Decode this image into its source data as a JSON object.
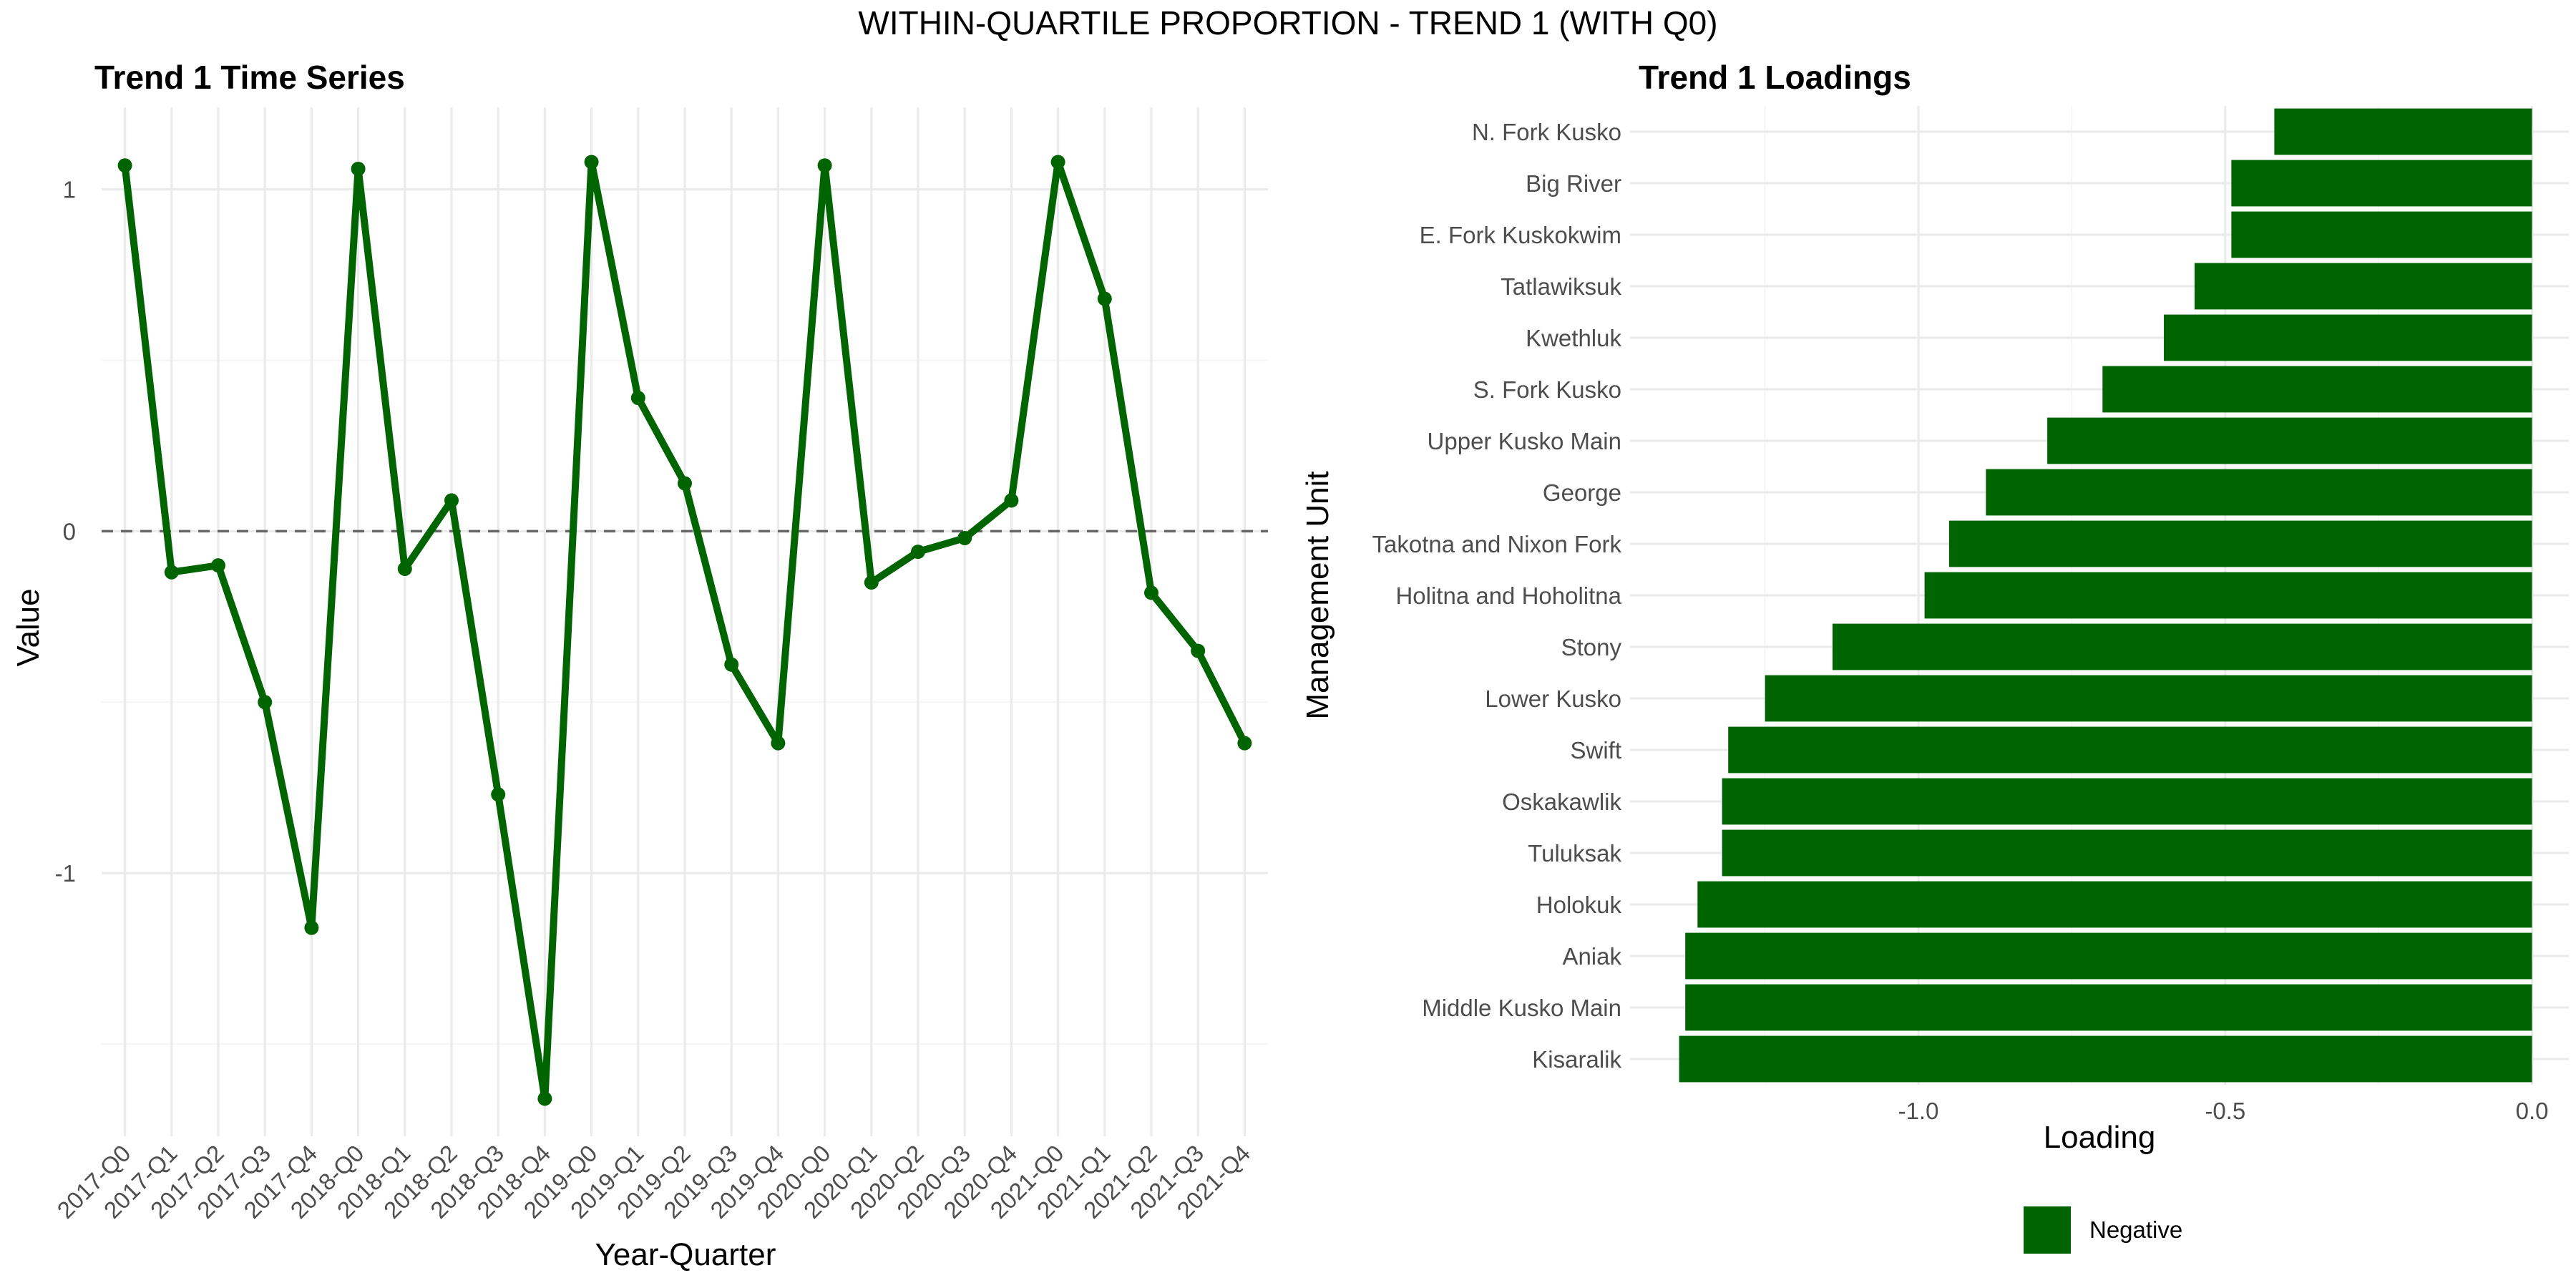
{
  "figure": {
    "title": "WITHIN-QUARTILE PROPORTION - TREND 1 (WITH Q0)"
  },
  "colors": {
    "series": "#006400",
    "zero_line": "#666666",
    "grid_major": "#ebebeb",
    "grid_minor": "#f4f4f4",
    "tick_text": "#4d4d4d"
  },
  "chart_data": [
    {
      "type": "line",
      "title": "Trend 1 Time Series",
      "xlabel": "Year-Quarter",
      "ylabel": "Value",
      "ylim": [
        -1.77,
        1.24
      ],
      "yticks": [
        1,
        0,
        -1
      ],
      "yticks_labels": [
        "1",
        "0",
        "-1"
      ],
      "reference_line": {
        "y": 0,
        "style": "dashed"
      },
      "grid": true,
      "x": [
        "2017-Q0",
        "2017-Q1",
        "2017-Q2",
        "2017-Q3",
        "2017-Q4",
        "2018-Q0",
        "2018-Q1",
        "2018-Q2",
        "2018-Q3",
        "2018-Q4",
        "2019-Q0",
        "2019-Q1",
        "2019-Q2",
        "2019-Q3",
        "2019-Q4",
        "2020-Q0",
        "2020-Q1",
        "2020-Q2",
        "2020-Q3",
        "2020-Q4",
        "2021-Q0",
        "2021-Q1",
        "2021-Q2",
        "2021-Q3",
        "2021-Q4"
      ],
      "series": [
        {
          "values": [
            1.07,
            -0.12,
            -0.1,
            -0.5,
            -1.16,
            1.06,
            -0.11,
            0.09,
            -0.77,
            -1.66,
            1.08,
            0.39,
            0.14,
            -0.39,
            -0.62,
            1.07,
            -0.15,
            -0.06,
            -0.02,
            0.09,
            1.08,
            0.68,
            -0.18,
            -0.35,
            -0.62
          ]
        }
      ]
    },
    {
      "type": "bar",
      "orientation": "horizontal",
      "title": "Trend 1 Loadings",
      "xlabel": "Loading",
      "ylabel": "Management Unit",
      "xlim": [
        -1.47,
        0.06
      ],
      "xticks": [
        -1.0,
        -0.5,
        0.0
      ],
      "xticks_labels": [
        "-1.0",
        "-0.5",
        "0.0"
      ],
      "grid": true,
      "legend": {
        "position": "bottom",
        "entries": [
          "Negative"
        ]
      },
      "categories": [
        "N. Fork Kusko",
        "Big River",
        "E. Fork Kuskokwim",
        "Tatlawiksuk",
        "Kwethluk",
        "S. Fork Kusko",
        "Upper Kusko Main",
        "George",
        "Takotna and Nixon Fork",
        "Holitna and Hoholitna",
        "Stony",
        "Lower Kusko",
        "Swift",
        "Oskakawlik",
        "Tuluksak",
        "Holokuk",
        "Aniak",
        "Middle Kusko Main",
        "Kisaralik"
      ],
      "values": [
        -0.42,
        -0.49,
        -0.49,
        -0.55,
        -0.6,
        -0.7,
        -0.79,
        -0.89,
        -0.95,
        -0.99,
        -1.14,
        -1.25,
        -1.31,
        -1.32,
        -1.32,
        -1.36,
        -1.38,
        -1.38,
        -1.39
      ],
      "series": [
        {
          "name": "Negative"
        }
      ]
    }
  ]
}
